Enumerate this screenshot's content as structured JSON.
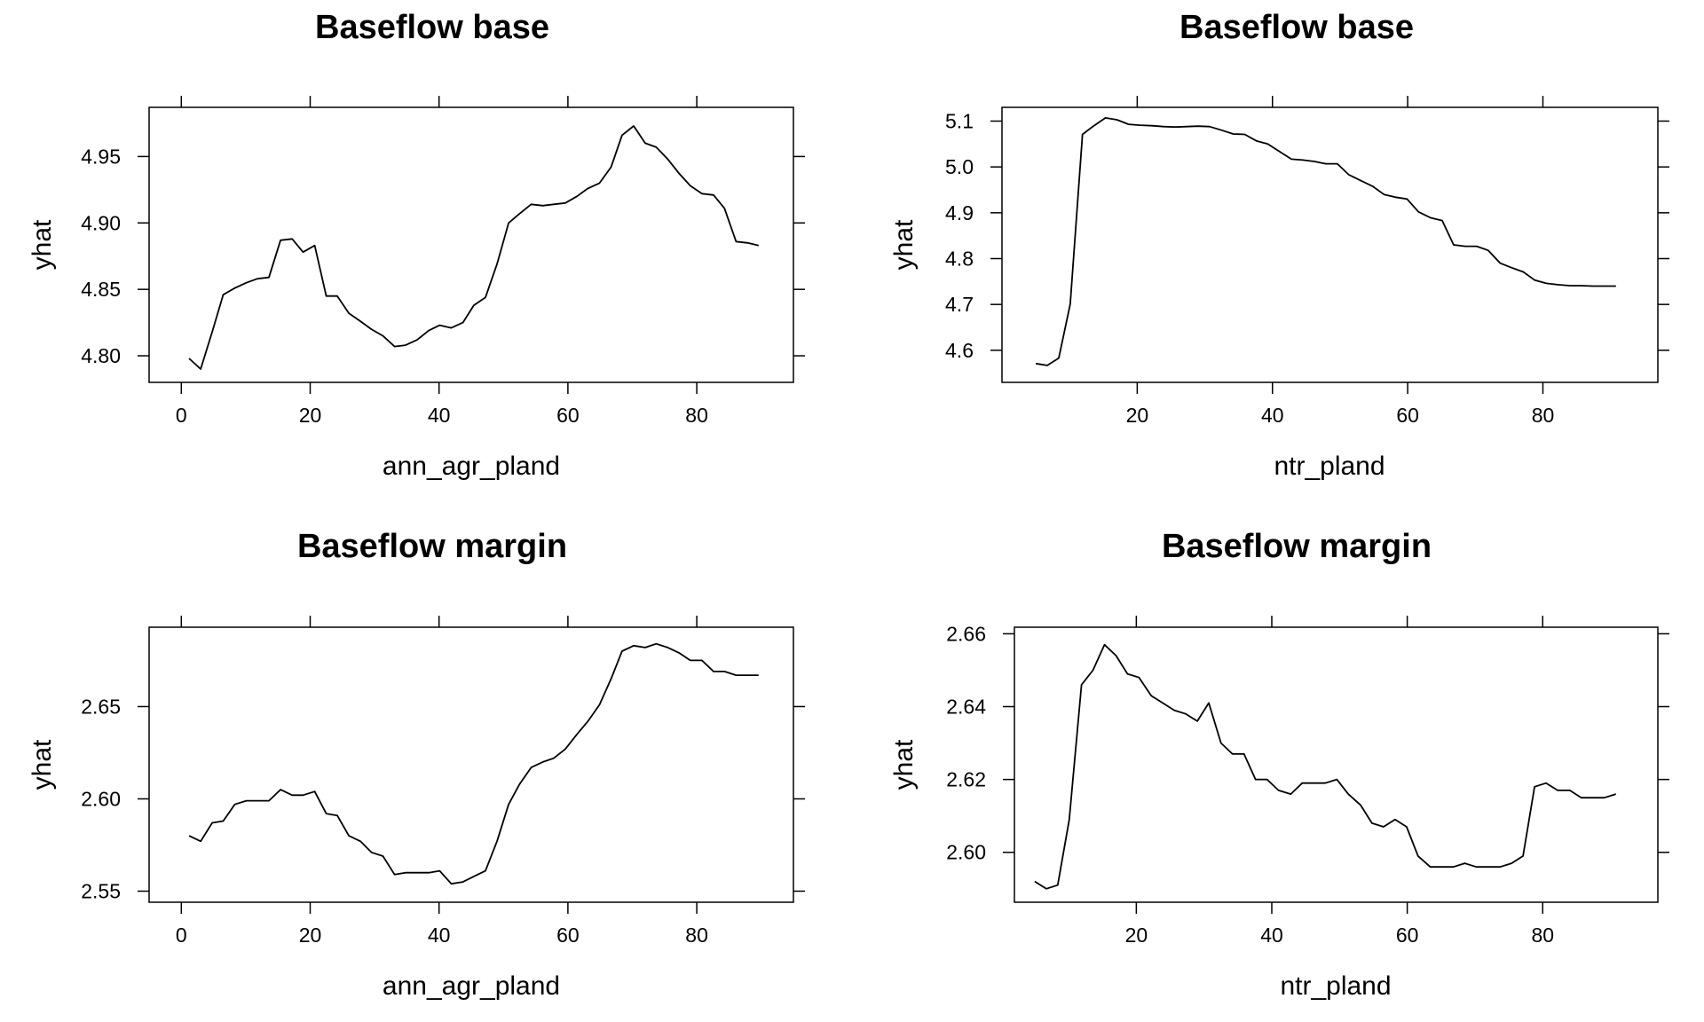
{
  "chart_data": [
    {
      "type": "line",
      "title": "Baseflow base",
      "xlabel": "ann_agr_pland",
      "ylabel": "yhat",
      "xlim": [
        -5,
        95
      ],
      "ylim": [
        4.78,
        4.987
      ],
      "xticks": [
        0,
        20,
        40,
        60,
        80
      ],
      "xtick_labels": [
        "0",
        "20",
        "40",
        "60",
        "80"
      ],
      "yticks": [
        4.8,
        4.85,
        4.9,
        4.95
      ],
      "ytick_labels": [
        "4.80",
        "4.85",
        "4.90",
        "4.95"
      ],
      "grid": false,
      "color": "#000000",
      "x": [
        1.2,
        3.0,
        4.8,
        6.5,
        8.3,
        10.1,
        11.8,
        13.6,
        15.4,
        17.2,
        18.9,
        20.7,
        22.5,
        24.2,
        26.0,
        27.8,
        29.5,
        31.3,
        33.1,
        34.8,
        36.6,
        38.4,
        40.1,
        41.9,
        43.7,
        45.4,
        47.2,
        49.0,
        50.8,
        52.5,
        54.3,
        56.1,
        57.8,
        59.6,
        61.4,
        63.1,
        64.9,
        66.7,
        68.4,
        70.2,
        72.0,
        73.7,
        75.5,
        77.3,
        79.0,
        80.8,
        82.6,
        84.3,
        86.1,
        87.9,
        89.6
      ],
      "y": [
        4.798,
        4.79,
        4.818,
        4.846,
        4.851,
        4.855,
        4.858,
        4.859,
        4.887,
        4.888,
        4.878,
        4.883,
        4.845,
        4.845,
        4.832,
        4.826,
        4.82,
        4.815,
        4.807,
        4.808,
        4.812,
        4.819,
        4.823,
        4.821,
        4.825,
        4.838,
        4.844,
        4.869,
        4.9,
        4.907,
        4.914,
        4.913,
        4.914,
        4.915,
        4.92,
        4.926,
        4.93,
        4.942,
        4.966,
        4.973,
        4.96,
        4.957,
        4.948,
        4.937,
        4.928,
        4.922,
        4.921,
        4.911,
        4.886,
        4.885,
        4.883
      ]
    },
    {
      "type": "line",
      "title": "Baseflow base",
      "xlabel": "ntr_pland",
      "ylabel": "yhat",
      "xlim": [
        0,
        97
      ],
      "ylim": [
        4.53,
        5.13
      ],
      "xticks": [
        20,
        40,
        60,
        80
      ],
      "xtick_labels": [
        "20",
        "40",
        "60",
        "80"
      ],
      "yticks": [
        4.6,
        4.7,
        4.8,
        4.9,
        5.0,
        5.1
      ],
      "ytick_labels": [
        "4.6",
        "4.7",
        "4.8",
        "4.9",
        "5.0",
        "5.1"
      ],
      "grid": false,
      "color": "#000000",
      "x": [
        5.0,
        6.7,
        8.4,
        10.1,
        11.9,
        13.6,
        15.3,
        17.0,
        18.7,
        20.4,
        22.2,
        23.9,
        25.6,
        27.3,
        29.0,
        30.7,
        32.5,
        34.2,
        35.9,
        37.6,
        39.3,
        41.0,
        42.8,
        44.5,
        46.2,
        47.9,
        49.6,
        51.3,
        53.1,
        54.8,
        56.5,
        58.2,
        59.9,
        61.6,
        63.4,
        65.1,
        66.8,
        68.5,
        70.2,
        71.9,
        73.7,
        75.4,
        77.1,
        78.8,
        80.5,
        82.2,
        84.0,
        85.7,
        87.4,
        89.1,
        90.8
      ],
      "y": [
        4.571,
        4.567,
        4.583,
        4.701,
        5.071,
        5.09,
        5.107,
        5.103,
        5.093,
        5.091,
        5.09,
        5.088,
        5.087,
        5.088,
        5.089,
        5.088,
        5.08,
        5.072,
        5.071,
        5.057,
        5.05,
        5.034,
        5.017,
        5.015,
        5.012,
        5.007,
        5.007,
        4.983,
        4.97,
        4.958,
        4.94,
        4.934,
        4.93,
        4.902,
        4.889,
        4.883,
        4.83,
        4.827,
        4.827,
        4.818,
        4.79,
        4.78,
        4.771,
        4.753,
        4.746,
        4.743,
        4.741,
        4.741,
        4.74,
        4.74,
        4.74
      ]
    },
    {
      "type": "line",
      "title": "Baseflow margin",
      "xlabel": "ann_agr_pland",
      "ylabel": "yhat",
      "xlim": [
        -5,
        95
      ],
      "ylim": [
        2.544,
        2.693
      ],
      "xticks": [
        0,
        20,
        40,
        60,
        80
      ],
      "xtick_labels": [
        "0",
        "20",
        "40",
        "60",
        "80"
      ],
      "yticks": [
        2.55,
        2.6,
        2.65
      ],
      "ytick_labels": [
        "2.55",
        "2.60",
        "2.65"
      ],
      "grid": false,
      "color": "#000000",
      "x": [
        1.2,
        3.0,
        4.8,
        6.5,
        8.3,
        10.1,
        11.8,
        13.6,
        15.4,
        17.2,
        18.9,
        20.7,
        22.5,
        24.2,
        26.0,
        27.8,
        29.5,
        31.3,
        33.1,
        34.8,
        36.6,
        38.4,
        40.1,
        41.9,
        43.7,
        45.4,
        47.2,
        49.0,
        50.8,
        52.5,
        54.3,
        56.1,
        57.8,
        59.6,
        61.4,
        63.1,
        64.9,
        66.7,
        68.4,
        70.2,
        72.0,
        73.7,
        75.5,
        77.3,
        79.0,
        80.8,
        82.6,
        84.3,
        86.1,
        87.9,
        89.6
      ],
      "y": [
        2.58,
        2.577,
        2.587,
        2.588,
        2.597,
        2.599,
        2.599,
        2.599,
        2.605,
        2.602,
        2.602,
        2.604,
        2.592,
        2.591,
        2.58,
        2.577,
        2.571,
        2.569,
        2.559,
        2.56,
        2.56,
        2.56,
        2.561,
        2.554,
        2.555,
        2.558,
        2.561,
        2.577,
        2.597,
        2.608,
        2.617,
        2.62,
        2.622,
        2.627,
        2.635,
        2.642,
        2.651,
        2.665,
        2.68,
        2.683,
        2.682,
        2.684,
        2.682,
        2.679,
        2.675,
        2.675,
        2.669,
        2.669,
        2.667,
        2.667,
        2.667
      ]
    },
    {
      "type": "line",
      "title": "Baseflow margin",
      "xlabel": "ntr_pland",
      "ylabel": "yhat",
      "xlim": [
        2,
        97
      ],
      "ylim": [
        2.5863,
        2.6618
      ],
      "xticks": [
        20,
        40,
        60,
        80
      ],
      "xtick_labels": [
        "20",
        "40",
        "60",
        "80"
      ],
      "yticks": [
        2.6,
        2.62,
        2.64,
        2.66
      ],
      "ytick_labels": [
        "2.60",
        "2.62",
        "2.64",
        "2.66"
      ],
      "grid": false,
      "color": "#000000",
      "x": [
        5.0,
        6.7,
        8.4,
        10.1,
        11.9,
        13.6,
        15.3,
        17.0,
        18.7,
        20.4,
        22.2,
        23.9,
        25.6,
        27.3,
        29.0,
        30.7,
        32.5,
        34.2,
        35.9,
        37.6,
        39.3,
        41.0,
        42.8,
        44.5,
        46.2,
        47.9,
        49.6,
        51.3,
        53.1,
        54.8,
        56.5,
        58.2,
        59.9,
        61.6,
        63.4,
        65.1,
        66.8,
        68.5,
        70.2,
        71.9,
        73.7,
        75.4,
        77.1,
        78.8,
        80.5,
        82.2,
        84.0,
        85.7,
        87.4,
        89.1,
        90.8
      ],
      "y": [
        2.592,
        2.59,
        2.591,
        2.609,
        2.646,
        2.65,
        2.657,
        2.654,
        2.649,
        2.648,
        2.643,
        2.641,
        2.639,
        2.638,
        2.636,
        2.641,
        2.63,
        2.627,
        2.627,
        2.62,
        2.62,
        2.617,
        2.616,
        2.619,
        2.619,
        2.619,
        2.62,
        2.616,
        2.613,
        2.608,
        2.607,
        2.609,
        2.607,
        2.599,
        2.596,
        2.596,
        2.596,
        2.597,
        2.596,
        2.596,
        2.596,
        2.597,
        2.599,
        2.618,
        2.619,
        2.617,
        2.617,
        2.615,
        2.615,
        2.615,
        2.616
      ]
    }
  ]
}
